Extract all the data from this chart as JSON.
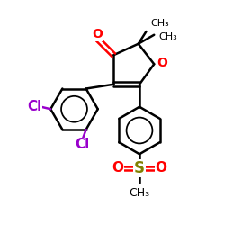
{
  "bg_color": "#ffffff",
  "atom_color_O": "#ff0000",
  "atom_color_S": "#808000",
  "atom_color_Cl": "#9900cc",
  "atom_color_C": "#000000",
  "bond_color": "#000000",
  "bond_lw": 1.8,
  "figsize": [
    2.5,
    2.5
  ],
  "dpi": 100,
  "xlim": [
    0,
    10
  ],
  "ylim": [
    0,
    10
  ],
  "font_size_atom": 10,
  "font_size_methyl": 8,
  "font_size_ch3": 9
}
